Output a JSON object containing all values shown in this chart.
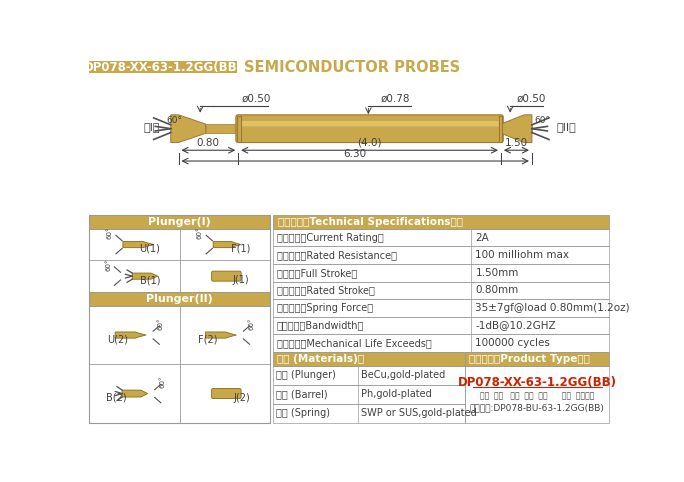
{
  "title_box_text": "DP078-XX-63-1.2GG(BB)",
  "title_box_color": "#C8A84B",
  "title_text": "SEMICONDUCTOR PROBES",
  "title_text_color": "#C8A84B",
  "probe_color": "#C8A84B",
  "probe_highlight": "#E8C870",
  "probe_dark": "#A07830",
  "bg_color": "#FFFFFF",
  "table_header_color": "#C8A84B",
  "table_border_color": "#999999",
  "dim_color": "#404040",
  "specs_header": "技术要求（Technical Specifications）：",
  "specs": [
    [
      "额定电流（Current Rating）",
      "2A"
    ],
    [
      "额定电阻（Rated Resistance）",
      "100 milliohm max"
    ],
    [
      "满行程（Full Stroke）",
      "1.50mm"
    ],
    [
      "额定行程（Rated Stroke）",
      "0.80mm"
    ],
    [
      "额定弹力（Spring Force）",
      "35±7gf@load 0.80mm(1.2oz)"
    ],
    [
      "频率带宽（Bandwidth）",
      "-1dB@10.2GHZ"
    ],
    [
      "测试寿命（Mechanical Life Exceeds）",
      "100000 cycles"
    ]
  ],
  "materials_header": "材质 (Materials)：",
  "materials": [
    [
      "针头 (Plunger)",
      "BeCu,gold-plated"
    ],
    [
      "针管 (Barrel)",
      "Ph,gold-plated"
    ],
    [
      "弹簧 (Spring)",
      "SWP or SUS,gold-plated"
    ]
  ],
  "plunger1_label": "Plunger(I)",
  "plunger2_label": "Plunger(II)",
  "product_type_label": "成品型号（Product Type）：",
  "product_type_value": "DP078-XX-63-1.2GG(BB)",
  "product_type_sub": "系列  规格   头型  总长  弹力      镀金  针头材质",
  "product_order": "订购举例:DP078-BU-63-1.2GG(BB)",
  "d050_left": "ø0.50",
  "d078": "ø0.78",
  "d050_right": "ø0.50",
  "dim_080": "0.80",
  "dim_40": "(4.0)",
  "dim_150": "1.50",
  "dim_630": "6.30",
  "label_I": "（I）",
  "label_II": "（II）",
  "angle_60": "60°"
}
